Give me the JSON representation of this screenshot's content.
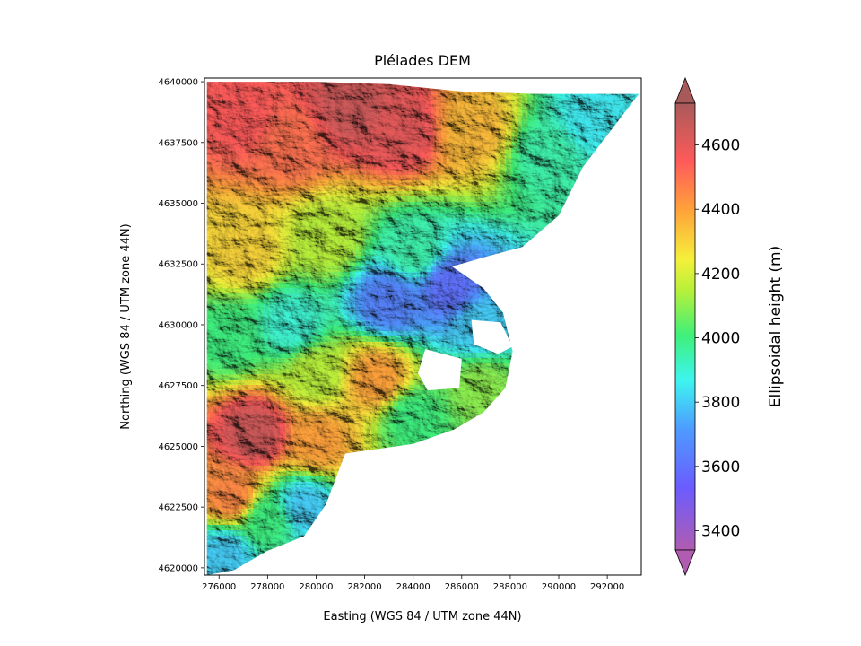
{
  "chart_data": {
    "type": "heatmap",
    "title": "Pléiades DEM",
    "xlabel": "Easting (WGS 84 / UTM zone 44N)",
    "ylabel": "Northing (WGS 84 / UTM zone 44N)",
    "xlim": [
      275400,
      293400
    ],
    "ylim": [
      4619700,
      4640150
    ],
    "xticks": [
      276000,
      278000,
      280000,
      282000,
      284000,
      286000,
      288000,
      290000,
      292000
    ],
    "yticks": [
      4620000,
      4622500,
      4625000,
      4627500,
      4630000,
      4632500,
      4635000,
      4637500,
      4640000
    ],
    "colorbar": {
      "label": "Ellipsoidal height (m)",
      "range": [
        3340,
        4730
      ],
      "ticks": [
        3400,
        3600,
        3800,
        4000,
        4200,
        4400,
        4600
      ],
      "extend": "both",
      "colormap": "turbo"
    },
    "valid_data_outline": [
      [
        275500,
        4640000
      ],
      [
        280000,
        4640000
      ],
      [
        283000,
        4639900
      ],
      [
        286000,
        4639600
      ],
      [
        289000,
        4639500
      ],
      [
        293300,
        4639500
      ],
      [
        291000,
        4636500
      ],
      [
        290000,
        4634500
      ],
      [
        288500,
        4633200
      ],
      [
        287000,
        4632800
      ],
      [
        285600,
        4632400
      ],
      [
        286900,
        4631500
      ],
      [
        287700,
        4630500
      ],
      [
        288100,
        4628900
      ],
      [
        287800,
        4627400
      ],
      [
        286900,
        4626400
      ],
      [
        285700,
        4625700
      ],
      [
        284000,
        4625100
      ],
      [
        281200,
        4624700
      ],
      [
        280400,
        4622600
      ],
      [
        279500,
        4621300
      ],
      [
        278000,
        4620700
      ],
      [
        276600,
        4619900
      ],
      [
        275500,
        4619700
      ]
    ],
    "nodata_regions": [
      [
        [
          284500,
          4629000
        ],
        [
          286000,
          4628600
        ],
        [
          285900,
          4627400
        ],
        [
          284600,
          4627300
        ],
        [
          284200,
          4628000
        ]
      ],
      [
        [
          286400,
          4630200
        ],
        [
          287600,
          4630100
        ],
        [
          288100,
          4629100
        ],
        [
          287500,
          4628800
        ],
        [
          286500,
          4629200
        ]
      ]
    ],
    "elevation_samples": [
      {
        "x": 277000,
        "y": 4638500,
        "z": 4550
      },
      {
        "x": 279000,
        "y": 4637500,
        "z": 4500
      },
      {
        "x": 281500,
        "y": 4639000,
        "z": 4650
      },
      {
        "x": 283500,
        "y": 4638000,
        "z": 4600
      },
      {
        "x": 286500,
        "y": 4638000,
        "z": 4350
      },
      {
        "x": 289500,
        "y": 4637000,
        "z": 3950
      },
      {
        "x": 291500,
        "y": 4638500,
        "z": 3850
      },
      {
        "x": 277000,
        "y": 4633000,
        "z": 4300
      },
      {
        "x": 280500,
        "y": 4633500,
        "z": 4150
      },
      {
        "x": 284000,
        "y": 4633000,
        "z": 3950
      },
      {
        "x": 283000,
        "y": 4631000,
        "z": 3650
      },
      {
        "x": 285500,
        "y": 4631500,
        "z": 3600
      },
      {
        "x": 286700,
        "y": 4630000,
        "z": 3800
      },
      {
        "x": 279000,
        "y": 4630000,
        "z": 3900
      },
      {
        "x": 276500,
        "y": 4629500,
        "z": 4000
      },
      {
        "x": 280000,
        "y": 4628000,
        "z": 4150
      },
      {
        "x": 282500,
        "y": 4627800,
        "z": 4400
      },
      {
        "x": 286800,
        "y": 4627400,
        "z": 4100
      },
      {
        "x": 284000,
        "y": 4626200,
        "z": 4000
      },
      {
        "x": 277500,
        "y": 4625500,
        "z": 4650
      },
      {
        "x": 280000,
        "y": 4625200,
        "z": 4400
      },
      {
        "x": 276500,
        "y": 4623000,
        "z": 4450
      },
      {
        "x": 278000,
        "y": 4622000,
        "z": 4000
      },
      {
        "x": 276200,
        "y": 4620500,
        "z": 3800
      },
      {
        "x": 279500,
        "y": 4622500,
        "z": 3800
      }
    ]
  }
}
